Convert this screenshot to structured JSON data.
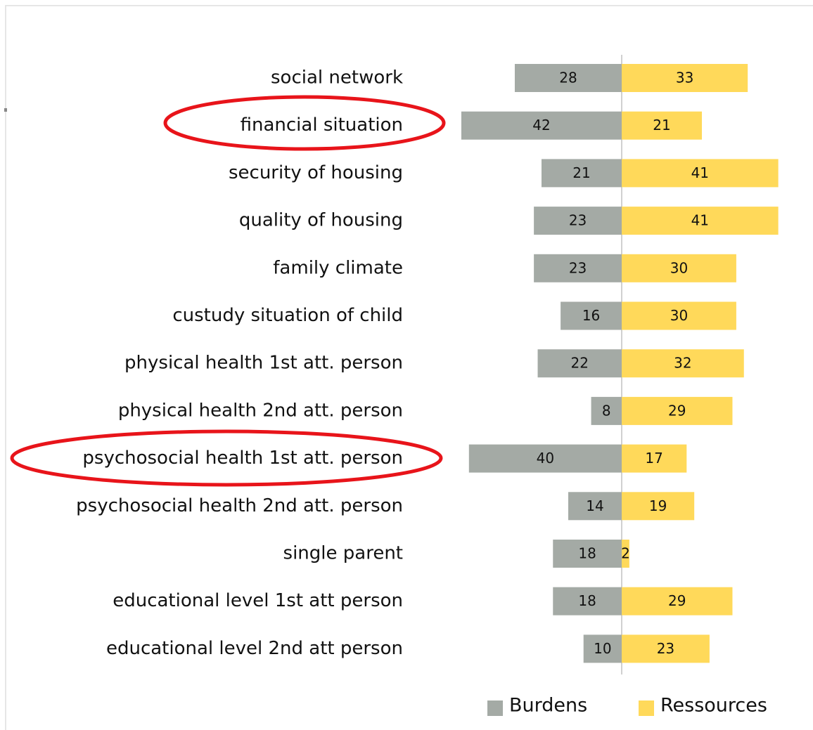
{
  "chart_data": {
    "type": "bar",
    "orientation": "diverging-horizontal",
    "categories": [
      "social network",
      "financial situation",
      "security of housing",
      "quality of housing",
      "family climate",
      "custudy situation of child",
      "physical health 1st att. person",
      "physical health 2nd att. person",
      "psychosocial health 1st att. person",
      "psychosocial health 2nd att. person",
      "single parent",
      "educational level 1st att person",
      "educational level 2nd att person"
    ],
    "series": [
      {
        "name": "Burdens",
        "color": "#a4aaa5",
        "values": [
          28,
          42,
          21,
          23,
          23,
          16,
          22,
          8,
          40,
          14,
          18,
          18,
          10
        ]
      },
      {
        "name": "Ressources",
        "color": "#ffd95a",
        "values": [
          33,
          21,
          41,
          41,
          30,
          30,
          32,
          29,
          17,
          19,
          2,
          29,
          23
        ]
      }
    ],
    "legend": "bottom"
  }
}
